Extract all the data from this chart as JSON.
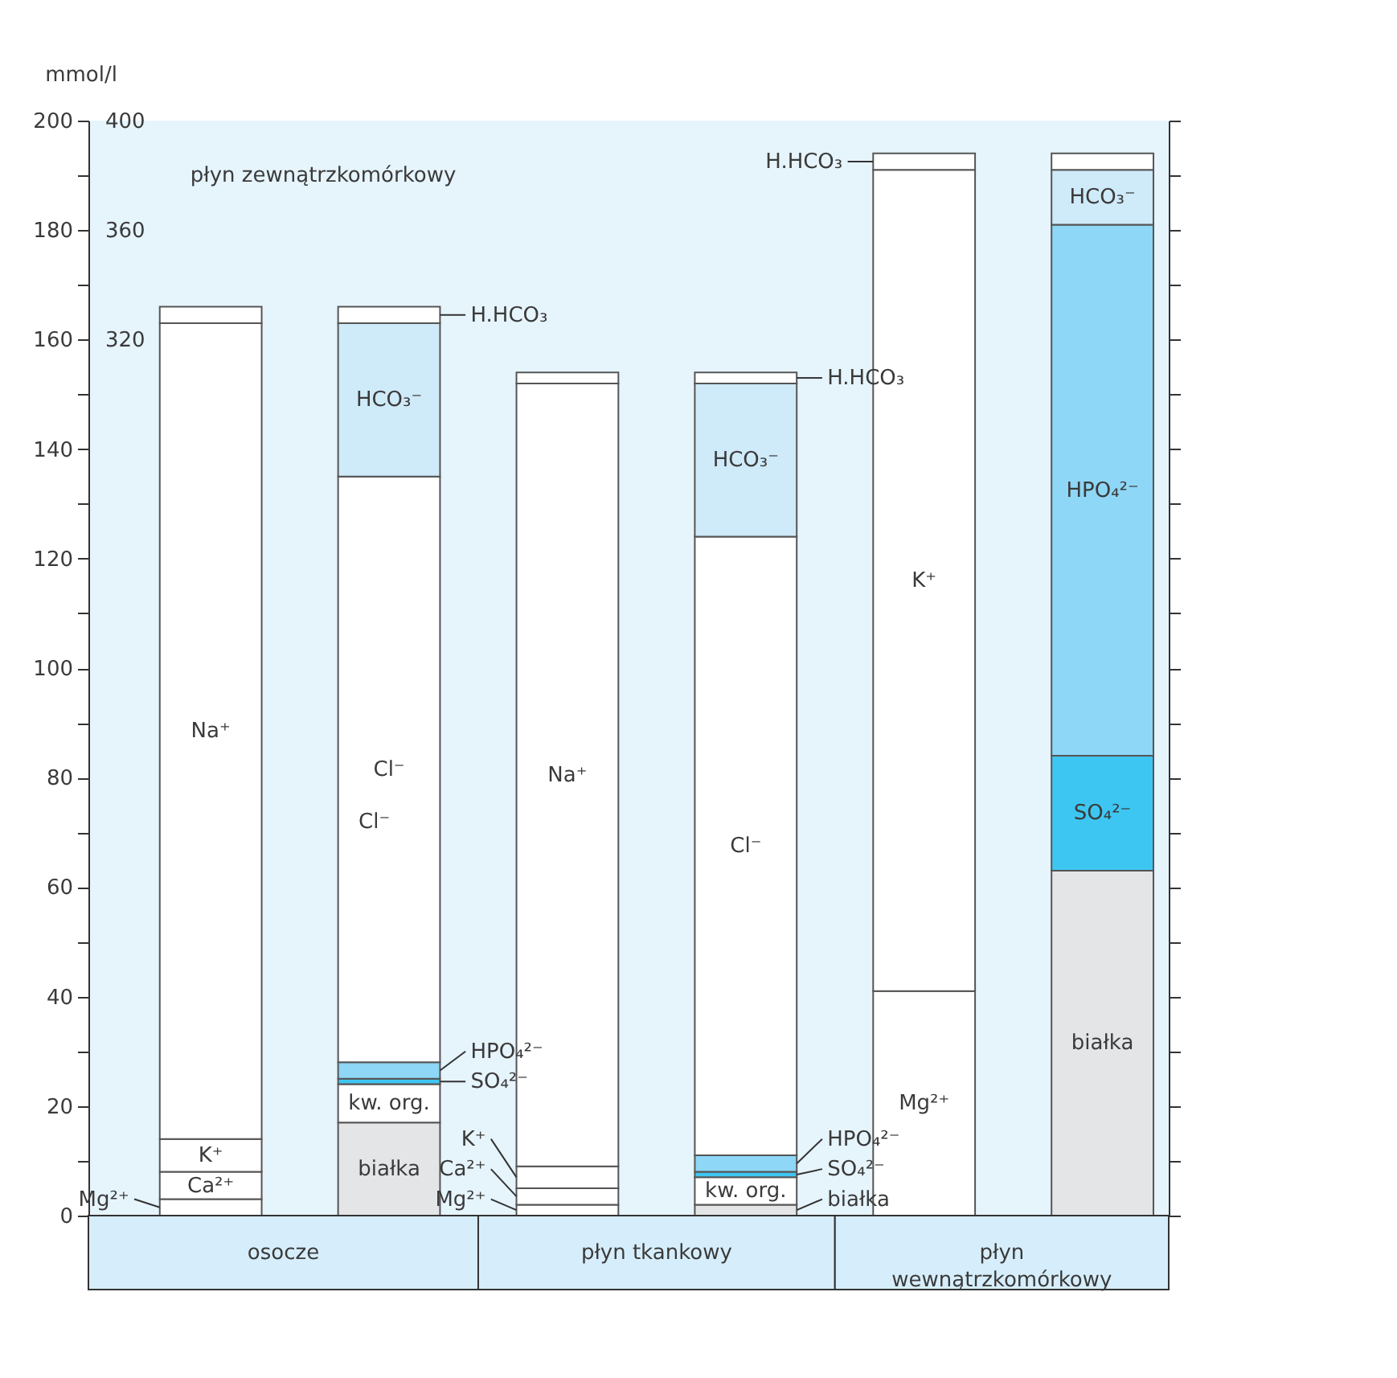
{
  "chart_data": {
    "type": "bar",
    "stacked": true,
    "ylabel": "mmol/l",
    "categories": [
      "osocze",
      null,
      "płyn tkankowy",
      null,
      "płyn wewnątrzkomórkowy",
      null
    ],
    "series": [
      {
        "name": "Mg²⁺",
        "color": "#ffffff",
        "values": [
          3,
          null,
          2,
          null,
          41,
          null
        ]
      },
      {
        "name": "Ca²⁺",
        "color": "#ffffff",
        "values": [
          5,
          null,
          3,
          null,
          null,
          null
        ]
      },
      {
        "name": "K⁺",
        "color": "#ffffff",
        "values": [
          6,
          null,
          4,
          null,
          150,
          null
        ]
      },
      {
        "name": "Na⁺",
        "color": "#ffffff",
        "values": [
          149,
          null,
          143,
          null,
          null,
          null
        ]
      },
      {
        "name": "białka",
        "color": "#e4e5e7",
        "values": [
          null,
          17,
          null,
          2,
          null,
          63
        ]
      },
      {
        "name": "kw. org.",
        "color": "#ffffff",
        "values": [
          null,
          7,
          null,
          5,
          null,
          null
        ]
      },
      {
        "name": "SO₄²⁻",
        "color": "#3ec6f2",
        "values": [
          null,
          1,
          null,
          1,
          null,
          21
        ]
      },
      {
        "name": "HPO₄²⁻",
        "color": "#8ed7f6",
        "values": [
          null,
          3,
          null,
          3,
          null,
          97
        ]
      },
      {
        "name": "Cl⁻",
        "color": "#ffffff",
        "values": [
          null,
          107,
          null,
          113,
          null,
          null
        ]
      },
      {
        "name": "HCO₃⁻",
        "color": "#cfeaf8",
        "values": [
          null,
          28,
          null,
          28,
          null,
          10
        ]
      },
      {
        "name": "H.HCO₃",
        "color": "#ffffff",
        "values": [
          3,
          3,
          2,
          2,
          3,
          3
        ]
      }
    ],
    "ylim": [
      0,
      200
    ],
    "yticks": [
      0,
      {
        "value": 10,
        "label": null
      },
      20,
      {
        "value": 30,
        "label": null
      },
      40,
      {
        "value": 50,
        "label": null
      },
      60,
      {
        "value": 70,
        "label": null
      },
      80,
      {
        "value": 90,
        "label": null
      },
      100,
      {
        "value": 110,
        "label": null
      },
      120,
      {
        "value": 130,
        "label": null
      },
      140,
      {
        "value": 150,
        "label": null
      },
      160,
      {
        "value": 170,
        "label": null
      },
      180,
      {
        "value": 190,
        "label": null
      },
      200
    ],
    "y2lim": [
      0,
      400
    ],
    "y2ticks": [
      320,
      360,
      400
    ],
    "legend": false,
    "grid": false,
    "annotations": [
      "płyn zewnątrzkomórkowy",
      "Cl⁻"
    ]
  }
}
